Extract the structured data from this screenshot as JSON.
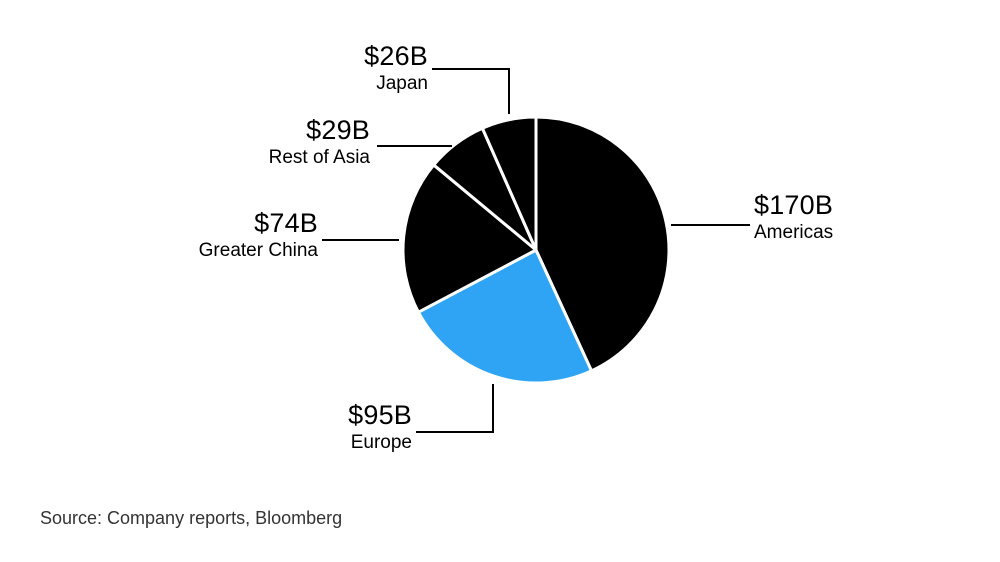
{
  "chart_data": {
    "type": "pie",
    "title": "",
    "slices": [
      {
        "label": "Americas",
        "value": 170,
        "display": "$170B",
        "color": "#000000"
      },
      {
        "label": "Europe",
        "value": 95,
        "display": "$95B",
        "color": "#2FA4F5"
      },
      {
        "label": "Greater China",
        "value": 74,
        "display": "$74B",
        "color": "#000000"
      },
      {
        "label": "Rest of Asia",
        "value": 29,
        "display": "$29B",
        "color": "#000000"
      },
      {
        "label": "Japan",
        "value": 26,
        "display": "$26B",
        "color": "#000000"
      }
    ],
    "start_angle_deg": 0,
    "direction": "clockwise",
    "separator_color": "#ffffff",
    "leader_line_color": "#000000",
    "legend": "none",
    "labeling": "outside-callouts"
  },
  "source_note": "Source: Company reports, Bloomberg",
  "colors": {
    "background": "#ffffff",
    "text": "#000000",
    "accent_blue": "#2FA4F5"
  }
}
